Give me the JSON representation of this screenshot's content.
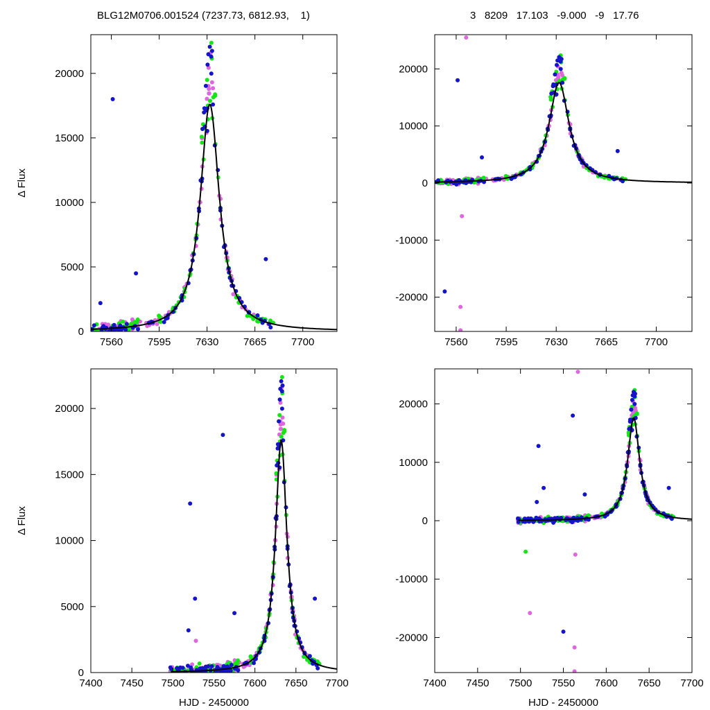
{
  "header": {
    "left": "BLG12M0706.001524 (7237.73, 6812.93,    1)",
    "right": "3   8209   17.103   -9.000   -9   17.76"
  },
  "colors": {
    "magenta": "#e066e0",
    "green": "#14e614",
    "blue": "#1414c8",
    "model": "#000000"
  },
  "chart_data": [
    {
      "type": "scatter",
      "panel": "top-left",
      "xlabel": "",
      "ylabel": "Δ Flux",
      "xlim": [
        7545,
        7725
      ],
      "ylim": [
        0,
        23000
      ],
      "xticks": [
        7560,
        7595,
        7630,
        7665,
        7700
      ],
      "yticks": [
        0,
        5000,
        10000,
        15000,
        20000
      ],
      "model": {
        "t0": 7632,
        "peak": 17600,
        "width": 8.5
      },
      "outliers": [
        [
          7561,
          18000,
          "blue"
        ],
        [
          7578,
          4500,
          "blue"
        ],
        [
          7552,
          2200,
          "blue"
        ],
        [
          7673,
          5600,
          "blue"
        ]
      ]
    },
    {
      "type": "scatter",
      "panel": "top-right",
      "xlabel": "",
      "ylabel": "",
      "xlim": [
        7545,
        7725
      ],
      "ylim": [
        -26000,
        26000
      ],
      "xticks": [
        7560,
        7595,
        7630,
        7665,
        7700
      ],
      "yticks": [
        -20000,
        -10000,
        0,
        10000,
        20000
      ],
      "model": {
        "t0": 7632,
        "peak": 17600,
        "width": 8.5
      },
      "outliers": [
        [
          7561,
          18000,
          "blue"
        ],
        [
          7567,
          25500,
          "magenta"
        ],
        [
          7552,
          -19000,
          "blue"
        ],
        [
          7563,
          -21700,
          "magenta"
        ],
        [
          7564,
          -5800,
          "magenta"
        ],
        [
          7563,
          -25800,
          "magenta"
        ],
        [
          7578,
          4500,
          "blue"
        ],
        [
          7673,
          5600,
          "blue"
        ]
      ]
    },
    {
      "type": "scatter",
      "panel": "bottom-left",
      "xlabel": "HJD - 2450000",
      "ylabel": "Δ Flux",
      "xlim": [
        7400,
        7700
      ],
      "ylim": [
        0,
        23000
      ],
      "xticks": [
        7400,
        7450,
        7500,
        7550,
        7600,
        7650,
        7700
      ],
      "yticks": [
        0,
        5000,
        10000,
        15000,
        20000
      ],
      "model": {
        "t0": 7632,
        "peak": 17600,
        "width": 8.5
      },
      "outliers": [
        [
          7521,
          12800,
          "blue"
        ],
        [
          7561,
          18000,
          "blue"
        ],
        [
          7527,
          5600,
          "blue"
        ],
        [
          7519,
          3200,
          "blue"
        ],
        [
          7575,
          4500,
          "blue"
        ],
        [
          7673,
          5600,
          "blue"
        ],
        [
          7528,
          2400,
          "magenta"
        ]
      ]
    },
    {
      "type": "scatter",
      "panel": "bottom-right",
      "xlabel": "HJD - 2450000",
      "ylabel": "",
      "xlim": [
        7400,
        7700
      ],
      "ylim": [
        -26000,
        26000
      ],
      "xticks": [
        7400,
        7450,
        7500,
        7550,
        7600,
        7650,
        7700
      ],
      "yticks": [
        -20000,
        -10000,
        0,
        10000,
        20000
      ],
      "model": {
        "t0": 7632,
        "peak": 17600,
        "width": 8.5
      },
      "outliers": [
        [
          7521,
          12800,
          "blue"
        ],
        [
          7561,
          18000,
          "blue"
        ],
        [
          7527,
          5600,
          "blue"
        ],
        [
          7519,
          3200,
          "blue"
        ],
        [
          7575,
          4500,
          "blue"
        ],
        [
          7673,
          5600,
          "blue"
        ],
        [
          7550,
          -19000,
          "blue"
        ],
        [
          7567,
          25500,
          "magenta"
        ],
        [
          7563,
          -21700,
          "magenta"
        ],
        [
          7564,
          -5800,
          "magenta"
        ],
        [
          7563,
          -25800,
          "magenta"
        ],
        [
          7511,
          -15800,
          "magenta"
        ],
        [
          7506,
          -5300,
          "green"
        ]
      ]
    }
  ]
}
